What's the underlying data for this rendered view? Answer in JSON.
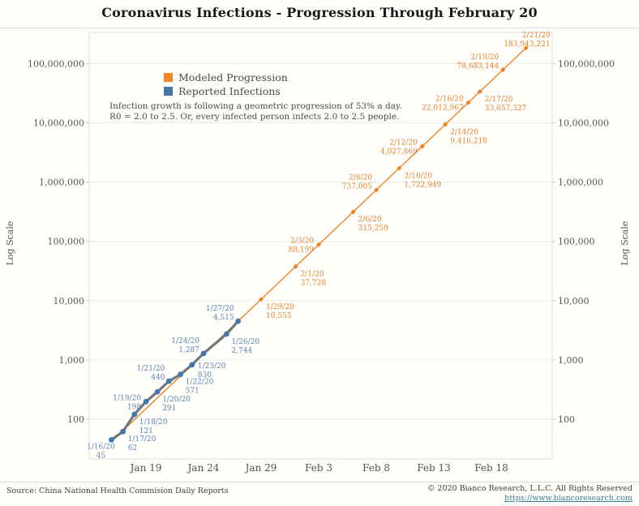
{
  "notes": [
    "Infection growth is following a geometric progression of 53% a day.",
    "R0 = 2.0 to 2.5. Or, every infected person infects 2.0 to 2.5 people."
  ],
  "footer": {
    "source": "Source: China National Health Commision Daily Reports",
    "copyright": "© 2020 Bianco Research, L.L.C. All Rights Reserved",
    "url": "https://www.biancoresearch.com"
  },
  "chart_data": {
    "type": "line",
    "title": "Coronavirus Infections - Progression Through February 20",
    "yscale": "log",
    "ylabel": "Log Scale",
    "ylim": [
      22,
      335000000
    ],
    "grid": "horizontal",
    "legend_position": "upper-left-inside",
    "y_ticks": [
      "100,000,000",
      "10,000,000",
      "1,000,000",
      "100,000",
      "10,000",
      "1,000",
      "100"
    ],
    "x_ticks": [
      {
        "label": "Jan 19",
        "date": "1/19/20"
      },
      {
        "label": "Jan 24",
        "date": "1/24/20"
      },
      {
        "label": "Jan 29",
        "date": "1/29/20"
      },
      {
        "label": "Feb 3",
        "date": "2/3/20"
      },
      {
        "label": "Feb 8",
        "date": "2/8/20"
      },
      {
        "label": "Feb 13",
        "date": "2/13/20"
      },
      {
        "label": "Feb 18",
        "date": "2/18/20"
      }
    ],
    "series": [
      {
        "name": "Modeled Progression",
        "legend_color": "#ed8727",
        "line_color": "#e5862f",
        "marker_color": "#e5862f",
        "label_color": "#dd8433",
        "line_width": 1.4,
        "marker": "diamond",
        "points": [
          {
            "date": "1/16/20",
            "value": 42,
            "marker": false,
            "estimated": true
          },
          {
            "date": "1/29/20",
            "value": 10555,
            "side": "br"
          },
          {
            "date": "2/1/20",
            "value": 37728,
            "side": "br"
          },
          {
            "date": "2/3/20",
            "value": 88199,
            "side": "l"
          },
          {
            "date": "2/6/20",
            "value": 315259,
            "side": "br"
          },
          {
            "date": "2/8/20",
            "value": 737005,
            "side": "la"
          },
          {
            "date": "2/10/20",
            "value": 1722949,
            "side": "br"
          },
          {
            "date": "2/12/20",
            "value": 4027869,
            "side": "l"
          },
          {
            "date": "2/14/20",
            "value": 9416218,
            "side": "br"
          },
          {
            "date": "2/16/20",
            "value": 22012967,
            "side": "l"
          },
          {
            "date": "2/17/20",
            "value": 33657327,
            "side": "br"
          },
          {
            "date": "2/19/20",
            "value": 78683144,
            "side": "la"
          },
          {
            "date": "2/21/20",
            "value": 183943221,
            "side": "ar"
          }
        ]
      },
      {
        "name": "Reported Infections",
        "legend_color": "#4576a6",
        "line_color": "#71767b",
        "marker_color": "#4576a6",
        "label_color": "#5d85ae",
        "line_width": 3.2,
        "marker": "circle",
        "points": [
          {
            "date": "1/16/20",
            "value": 45,
            "side": "b"
          },
          {
            "date": "1/17/20",
            "value": 62,
            "side": "br"
          },
          {
            "date": "1/18/20",
            "value": 121,
            "side": "br"
          },
          {
            "date": "1/19/20",
            "value": 198,
            "side": "l"
          },
          {
            "date": "1/20/20",
            "value": 291,
            "side": "br"
          },
          {
            "date": "1/21/20",
            "value": 440,
            "side": "la"
          },
          {
            "date": "1/22/20",
            "value": 571,
            "side": "br"
          },
          {
            "date": "1/23/20",
            "value": 830,
            "side": "r"
          },
          {
            "date": "1/24/20",
            "value": 1287,
            "side": "la"
          },
          {
            "date": "1/26/20",
            "value": 2744,
            "side": "br"
          },
          {
            "date": "1/27/20",
            "value": 4515,
            "side": "la"
          }
        ]
      }
    ]
  }
}
